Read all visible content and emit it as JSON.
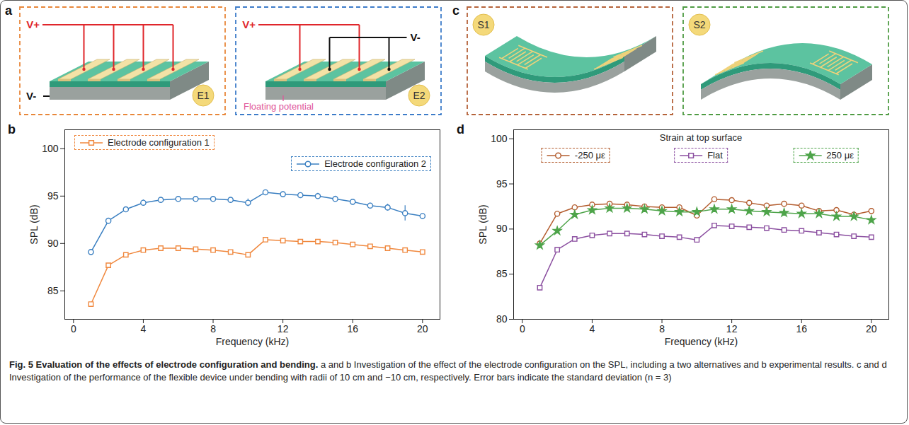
{
  "chart_data": [
    {
      "panel": "b",
      "type": "line",
      "x_label": "Frequency (kHz)",
      "y_label": "SPL (dB)",
      "x": [
        1,
        2,
        3,
        4,
        5,
        6,
        7,
        8,
        9,
        10,
        11,
        12,
        13,
        14,
        15,
        16,
        17,
        18,
        19,
        20
      ],
      "xlim": [
        -0.5,
        21
      ],
      "xticks": [
        0,
        4,
        8,
        12,
        16,
        20
      ],
      "ylim": [
        82,
        102
      ],
      "yticks": [
        85,
        90,
        95,
        100
      ],
      "legend": "top",
      "series": [
        {
          "name": "Electrode configuration 1",
          "color": "#f0883e",
          "marker": "square",
          "values": [
            83.6,
            87.7,
            88.8,
            89.3,
            89.5,
            89.5,
            89.4,
            89.3,
            89.1,
            88.8,
            90.4,
            90.3,
            90.2,
            90.2,
            90.1,
            89.9,
            89.7,
            89.5,
            89.3,
            89.1
          ],
          "errors": [
            0.2,
            0.1,
            0.1,
            0.1,
            0.1,
            0.1,
            0.1,
            0.1,
            0.1,
            0.1,
            0.15,
            0.15,
            0.15,
            0.15,
            0.15,
            0.15,
            0.15,
            0.15,
            0.2,
            0.15
          ]
        },
        {
          "name": "Electrode configuration 2",
          "color": "#3a7fc1",
          "marker": "circle",
          "values": [
            89.1,
            92.4,
            93.6,
            94.3,
            94.6,
            94.7,
            94.7,
            94.7,
            94.6,
            94.3,
            95.4,
            95.2,
            95.1,
            95.0,
            94.7,
            94.4,
            94.0,
            93.8,
            93.2,
            92.9
          ],
          "errors": [
            0.25,
            0.2,
            0.2,
            0.3,
            0.25,
            0.2,
            0.2,
            0.2,
            0.2,
            0.4,
            0.2,
            0.15,
            0.2,
            0.3,
            0.3,
            0.2,
            0.25,
            0.35,
            0.8,
            0.2
          ]
        }
      ]
    },
    {
      "panel": "d",
      "type": "line",
      "x_label": "Frequency (kHz)",
      "y_label": "SPL (dB)",
      "annotation": "Strain at top surface",
      "x": [
        1,
        2,
        3,
        4,
        5,
        6,
        7,
        8,
        9,
        10,
        11,
        12,
        13,
        14,
        15,
        16,
        17,
        18,
        19,
        20
      ],
      "xlim": [
        -0.5,
        21
      ],
      "xticks": [
        0,
        4,
        8,
        12,
        16,
        20
      ],
      "ylim": [
        80,
        101
      ],
      "yticks": [
        80,
        85,
        90,
        95,
        100
      ],
      "legend": "top",
      "series": [
        {
          "name": "-250 με",
          "color": "#b35c2e",
          "marker": "circle",
          "values": [
            88.4,
            91.7,
            92.4,
            92.7,
            92.8,
            92.7,
            92.5,
            92.4,
            92.4,
            91.5,
            93.3,
            93.2,
            92.9,
            92.6,
            92.8,
            92.6,
            92.0,
            92.1,
            91.6,
            92.0
          ],
          "errors": [
            0.15,
            0.1,
            0.1,
            0.1,
            0.1,
            0.1,
            0.1,
            0.1,
            0.1,
            0.2,
            0.1,
            0.1,
            0.1,
            0.1,
            0.1,
            0.1,
            0.1,
            0.1,
            0.15,
            0.1
          ]
        },
        {
          "name": "Flat",
          "color": "#8b4fa0",
          "marker": "square",
          "values": [
            83.5,
            87.7,
            88.9,
            89.3,
            89.5,
            89.5,
            89.4,
            89.2,
            89.1,
            88.8,
            90.4,
            90.3,
            90.2,
            90.1,
            89.9,
            89.8,
            89.6,
            89.4,
            89.2,
            89.1
          ],
          "errors": [
            0.2,
            0.15,
            0.15,
            0.1,
            0.1,
            0.1,
            0.1,
            0.1,
            0.1,
            0.1,
            0.15,
            0.15,
            0.15,
            0.15,
            0.15,
            0.15,
            0.15,
            0.15,
            0.15,
            0.15
          ]
        },
        {
          "name": "250 με",
          "color": "#4ea44a",
          "marker": "star",
          "values": [
            88.2,
            89.8,
            91.6,
            92.1,
            92.3,
            92.3,
            92.2,
            92.0,
            91.9,
            91.9,
            92.2,
            92.2,
            92.0,
            91.9,
            91.8,
            91.7,
            91.7,
            91.4,
            91.4,
            91.0
          ],
          "errors": [
            0.2,
            0.2,
            0.15,
            0.15,
            0.15,
            0.15,
            0.15,
            0.15,
            0.15,
            0.15,
            0.15,
            0.15,
            0.15,
            0.15,
            0.15,
            0.15,
            0.15,
            0.15,
            0.2,
            0.15
          ]
        }
      ]
    }
  ],
  "diagrams": [
    {
      "panel": "a",
      "items": [
        {
          "label": "E1",
          "color": "#e8873a",
          "texts": {
            "positive": "V+",
            "negative": "V-"
          }
        },
        {
          "label": "E2",
          "color": "#3d7cc9",
          "texts": {
            "positive": "V+",
            "negative": "V-",
            "floating": "Floating potential"
          }
        }
      ]
    },
    {
      "panel": "c",
      "items": [
        {
          "label": "S1",
          "color": "#b5633a"
        },
        {
          "label": "S2",
          "color": "#4f9b43"
        }
      ]
    }
  ],
  "caption": {
    "title": "Fig. 5 Evaluation of the effects of electrode configuration and bending.",
    "text": "a and b Investigation of the effect of the electrode configuration on the SPL, including a two alternatives and b experimental results. c and d Investigation of the performance of the flexible device under bending with radii of 10 cm and −10 cm, respectively. Error bars indicate the standard deviation (n = 3)"
  }
}
